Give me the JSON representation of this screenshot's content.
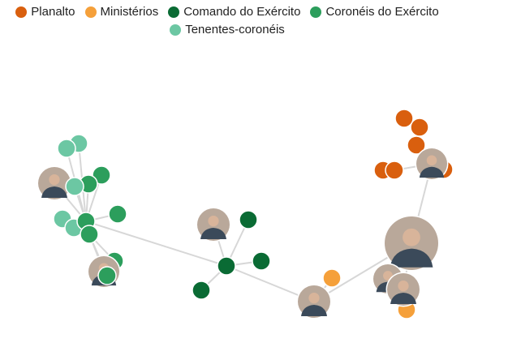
{
  "legend": [
    {
      "label": "Planalto",
      "color": "#d95f0e"
    },
    {
      "label": "Ministérios",
      "color": "#f5a03a"
    },
    {
      "label": "Comando do Exército",
      "color": "#0a6b34"
    },
    {
      "label": "Coronéis do Exército",
      "color": "#2c9e5c"
    },
    {
      "label": "Tenentes-coronéis",
      "color": "#6cc7a3"
    }
  ],
  "colors": {
    "edge": "#d7d7d7",
    "photo_fill": "#b9a89a",
    "photo_ring": "#ffffff"
  },
  "chart_data": {
    "type": "network",
    "title": "",
    "groups": [
      "Planalto",
      "Ministérios",
      "Comando do Exército",
      "Coronéis do Exército",
      "Tenentes-coronéis"
    ]
  }
}
